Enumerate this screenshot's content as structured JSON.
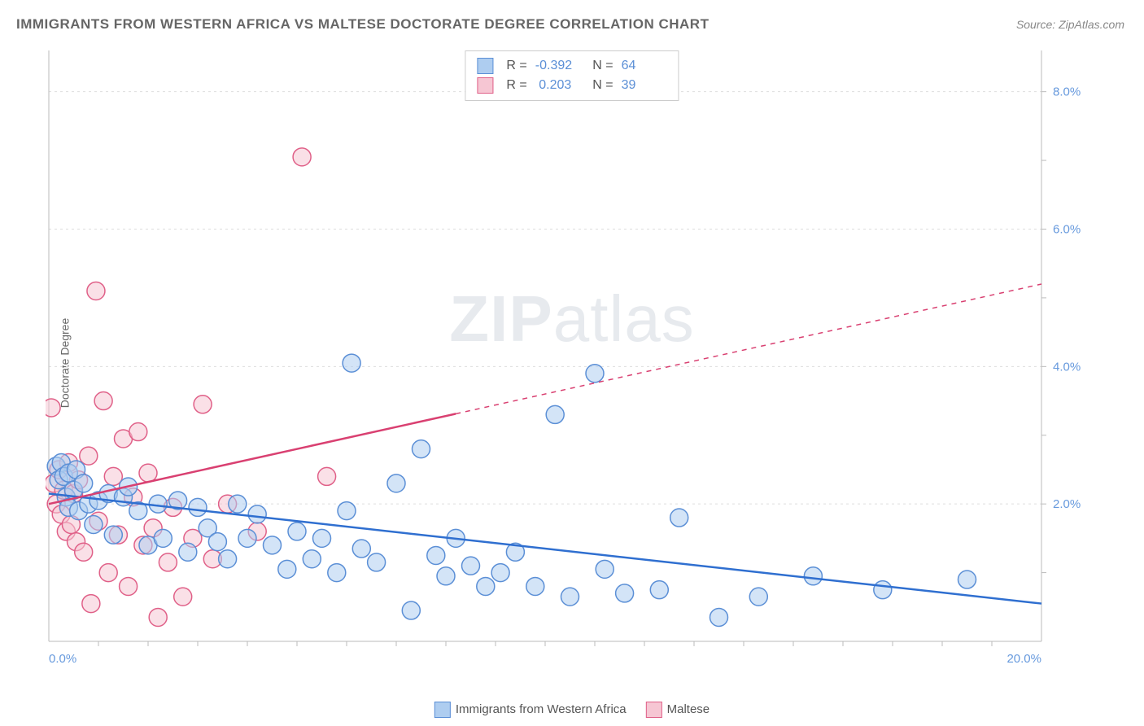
{
  "title": "IMMIGRANTS FROM WESTERN AFRICA VS MALTESE DOCTORATE DEGREE CORRELATION CHART",
  "source_label": "Source: ZipAtlas.com",
  "ylabel": "Doctorate Degree",
  "watermark": {
    "left": "ZIP",
    "right": "atlas"
  },
  "chart": {
    "type": "scatter",
    "xlim": [
      0,
      20
    ],
    "ylim": [
      0,
      8.6
    ],
    "x_ticks": [
      {
        "v": 0,
        "label": "0.0%"
      },
      {
        "v": 20,
        "label": "20.0%"
      }
    ],
    "y_ticks": [
      {
        "v": 2,
        "label": "2.0%"
      },
      {
        "v": 4,
        "label": "4.0%"
      },
      {
        "v": 6,
        "label": "6.0%"
      },
      {
        "v": 8,
        "label": "8.0%"
      }
    ],
    "grid_color": "#dddddd",
    "grid_dash": "3,4",
    "axis_color": "#bbbbbb",
    "background_color": "#ffffff",
    "tick_label_color": "#6699dd",
    "tick_minor_step_x": 1,
    "tick_minor_step_y": 1,
    "marker_radius": 11,
    "marker_stroke_width": 1.5,
    "trend_line_width": 2.5,
    "series": [
      {
        "name": "Immigrants from Western Africa",
        "fill": "#aecdf0",
        "stroke": "#5b8fd6",
        "fill_opacity": 0.55,
        "r_value": "-0.392",
        "n_value": "64",
        "trend": {
          "x0": 0,
          "y0": 2.15,
          "x1": 20,
          "y1": 0.55,
          "color": "#2f6fd0",
          "dash_after_x": null
        },
        "points": [
          [
            0.15,
            2.55
          ],
          [
            0.2,
            2.35
          ],
          [
            0.25,
            2.6
          ],
          [
            0.3,
            2.4
          ],
          [
            0.35,
            2.1
          ],
          [
            0.4,
            2.45
          ],
          [
            0.4,
            1.95
          ],
          [
            0.5,
            2.2
          ],
          [
            0.55,
            2.5
          ],
          [
            0.6,
            1.9
          ],
          [
            0.7,
            2.3
          ],
          [
            0.8,
            2.0
          ],
          [
            0.9,
            1.7
          ],
          [
            1.0,
            2.05
          ],
          [
            1.2,
            2.15
          ],
          [
            1.3,
            1.55
          ],
          [
            1.5,
            2.1
          ],
          [
            1.6,
            2.25
          ],
          [
            1.8,
            1.9
          ],
          [
            2.0,
            1.4
          ],
          [
            2.2,
            2.0
          ],
          [
            2.3,
            1.5
          ],
          [
            2.6,
            2.05
          ],
          [
            2.8,
            1.3
          ],
          [
            3.0,
            1.95
          ],
          [
            3.2,
            1.65
          ],
          [
            3.4,
            1.45
          ],
          [
            3.6,
            1.2
          ],
          [
            3.8,
            2.0
          ],
          [
            4.0,
            1.5
          ],
          [
            4.2,
            1.85
          ],
          [
            4.5,
            1.4
          ],
          [
            4.8,
            1.05
          ],
          [
            5.0,
            1.6
          ],
          [
            5.3,
            1.2
          ],
          [
            5.5,
            1.5
          ],
          [
            5.8,
            1.0
          ],
          [
            6.0,
            1.9
          ],
          [
            6.1,
            4.05
          ],
          [
            6.3,
            1.35
          ],
          [
            6.6,
            1.15
          ],
          [
            7.0,
            2.3
          ],
          [
            7.3,
            0.45
          ],
          [
            7.5,
            2.8
          ],
          [
            7.8,
            1.25
          ],
          [
            8.0,
            0.95
          ],
          [
            8.2,
            1.5
          ],
          [
            8.5,
            1.1
          ],
          [
            8.8,
            0.8
          ],
          [
            9.1,
            1.0
          ],
          [
            9.4,
            1.3
          ],
          [
            9.8,
            0.8
          ],
          [
            10.2,
            3.3
          ],
          [
            10.5,
            0.65
          ],
          [
            11.0,
            3.9
          ],
          [
            11.2,
            1.05
          ],
          [
            11.6,
            0.7
          ],
          [
            12.3,
            0.75
          ],
          [
            12.7,
            1.8
          ],
          [
            13.5,
            0.35
          ],
          [
            14.3,
            0.65
          ],
          [
            15.4,
            0.95
          ],
          [
            16.8,
            0.75
          ],
          [
            18.5,
            0.9
          ]
        ]
      },
      {
        "name": "Maltese",
        "fill": "#f6c6d3",
        "stroke": "#e06088",
        "fill_opacity": 0.55,
        "r_value": "0.203",
        "n_value": "39",
        "trend": {
          "x0": 0,
          "y0": 2.0,
          "x1": 20,
          "y1": 5.2,
          "color": "#d94071",
          "dash_after_x": 8.2
        },
        "points": [
          [
            0.05,
            3.4
          ],
          [
            0.1,
            2.3
          ],
          [
            0.15,
            2.0
          ],
          [
            0.2,
            2.5
          ],
          [
            0.25,
            1.85
          ],
          [
            0.3,
            2.2
          ],
          [
            0.35,
            1.6
          ],
          [
            0.4,
            2.6
          ],
          [
            0.45,
            1.7
          ],
          [
            0.5,
            2.15
          ],
          [
            0.55,
            1.45
          ],
          [
            0.6,
            2.35
          ],
          [
            0.7,
            1.3
          ],
          [
            0.8,
            2.7
          ],
          [
            0.85,
            0.55
          ],
          [
            0.95,
            5.1
          ],
          [
            1.0,
            1.75
          ],
          [
            1.1,
            3.5
          ],
          [
            1.2,
            1.0
          ],
          [
            1.3,
            2.4
          ],
          [
            1.4,
            1.55
          ],
          [
            1.5,
            2.95
          ],
          [
            1.6,
            0.8
          ],
          [
            1.7,
            2.1
          ],
          [
            1.8,
            3.05
          ],
          [
            1.9,
            1.4
          ],
          [
            2.0,
            2.45
          ],
          [
            2.1,
            1.65
          ],
          [
            2.2,
            0.35
          ],
          [
            2.4,
            1.15
          ],
          [
            2.5,
            1.95
          ],
          [
            2.7,
            0.65
          ],
          [
            2.9,
            1.5
          ],
          [
            3.1,
            3.45
          ],
          [
            3.3,
            1.2
          ],
          [
            3.6,
            2.0
          ],
          [
            4.2,
            1.6
          ],
          [
            5.1,
            7.05
          ],
          [
            5.6,
            2.4
          ]
        ]
      }
    ]
  },
  "bottom_legend": [
    {
      "swatch_fill": "#aecdf0",
      "swatch_stroke": "#5b8fd6",
      "label": "Immigrants from Western Africa"
    },
    {
      "swatch_fill": "#f6c6d3",
      "swatch_stroke": "#e06088",
      "label": "Maltese"
    }
  ]
}
